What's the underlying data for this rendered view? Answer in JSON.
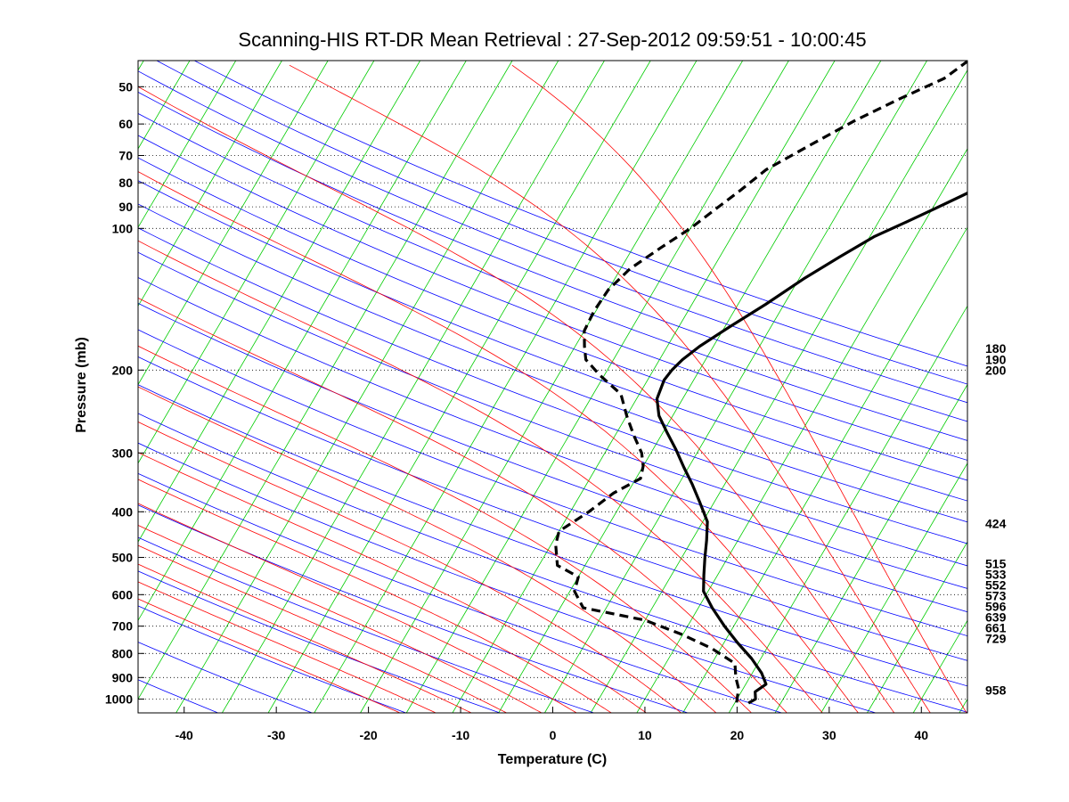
{
  "chart_data": {
    "type": "line",
    "title": "Scanning-HIS RT-DR Mean Retrieval : 27-Sep-2012 09:59:51 - 10:00:45",
    "xlabel": "Temperature (C)",
    "ylabel": "Pressure (mb)",
    "xlim": [
      -45,
      45
    ],
    "ylim": [
      1070,
      44
    ],
    "y_scale": "log",
    "x_ticks": [
      -40,
      -30,
      -20,
      -10,
      0,
      10,
      20,
      30,
      40
    ],
    "y_ticks": [
      50,
      60,
      70,
      80,
      90,
      100,
      200,
      300,
      400,
      500,
      600,
      700,
      800,
      900,
      1000
    ],
    "grid": "y dotted",
    "series": [
      {
        "name": "Temperature",
        "style": "solid black",
        "points": [
          [
            31.2,
            44
          ],
          [
            28.0,
            50
          ],
          [
            24.5,
            57
          ],
          [
            21.0,
            64
          ],
          [
            18.0,
            71
          ],
          [
            15.3,
            78
          ],
          [
            12.5,
            85
          ],
          [
            10.2,
            91
          ],
          [
            8.0,
            97
          ],
          [
            5.5,
            104
          ],
          [
            3.0,
            115
          ],
          [
            0.5,
            128
          ],
          [
            -2.0,
            145
          ],
          [
            -4.5,
            162
          ],
          [
            -6.5,
            178
          ],
          [
            -7.5,
            190
          ],
          [
            -8.0,
            200
          ],
          [
            -8.2,
            210
          ],
          [
            -7.8,
            230
          ],
          [
            -6.5,
            250
          ],
          [
            -4.5,
            272
          ],
          [
            -2.5,
            295
          ],
          [
            -0.5,
            322
          ],
          [
            1.5,
            350
          ],
          [
            3.5,
            383
          ],
          [
            5.5,
            420
          ],
          [
            6.6,
            460
          ],
          [
            7.5,
            500
          ],
          [
            8.5,
            545
          ],
          [
            9.5,
            590
          ],
          [
            11.5,
            640
          ],
          [
            14.0,
            700
          ],
          [
            16.5,
            760
          ],
          [
            19.0,
            820
          ],
          [
            21.0,
            880
          ],
          [
            22.2,
            930
          ],
          [
            21.5,
            965
          ],
          [
            22.0,
            1000
          ],
          [
            21.5,
            1020
          ]
        ]
      },
      {
        "name": "Dew Point",
        "style": "dashed black",
        "points": [
          [
            4.5,
            44
          ],
          [
            3.0,
            48
          ],
          [
            -0.5,
            53
          ],
          [
            -4.0,
            59
          ],
          [
            -7.5,
            67
          ],
          [
            -10.5,
            75
          ],
          [
            -12.0,
            83
          ],
          [
            -13.5,
            91
          ],
          [
            -15.0,
            100
          ],
          [
            -17.0,
            110
          ],
          [
            -19.0,
            122
          ],
          [
            -20.0,
            135
          ],
          [
            -20.2,
            150
          ],
          [
            -20.0,
            165
          ],
          [
            -19.0,
            178
          ],
          [
            -18.0,
            190
          ],
          [
            -15.5,
            205
          ],
          [
            -12.0,
            225
          ],
          [
            -10.0,
            250
          ],
          [
            -8.0,
            275
          ],
          [
            -6.0,
            300
          ],
          [
            -5.0,
            320
          ],
          [
            -4.5,
            340
          ],
          [
            -6.5,
            365
          ],
          [
            -8.0,
            400
          ],
          [
            -10.0,
            440
          ],
          [
            -9.5,
            470
          ],
          [
            -8.0,
            520
          ],
          [
            -5.0,
            550
          ],
          [
            -4.5,
            590
          ],
          [
            -2.5,
            640
          ],
          [
            5.0,
            680
          ],
          [
            10.0,
            730
          ],
          [
            14.0,
            780
          ],
          [
            17.5,
            840
          ],
          [
            18.5,
            900
          ],
          [
            19.5,
            950
          ],
          [
            20.0,
            1000
          ],
          [
            20.2,
            1020
          ]
        ]
      }
    ],
    "background_lines": [
      {
        "name": "isotherms (skewed)",
        "color": "#00cc00"
      },
      {
        "name": "dry adiabats",
        "color": "#0000ff"
      },
      {
        "name": "moist adiabats",
        "color": "#ff0000"
      }
    ],
    "right_labels": [
      {
        "p": 180,
        "text": "180"
      },
      {
        "p": 190,
        "text": "190"
      },
      {
        "p": 200,
        "text": "200"
      },
      {
        "p": 424,
        "text": "424"
      },
      {
        "p": 515,
        "text": "515"
      },
      {
        "p": 533,
        "text": "533"
      },
      {
        "p": 552,
        "text": "552"
      },
      {
        "p": 573,
        "text": "573"
      },
      {
        "p": 596,
        "text": "596"
      },
      {
        "p": 639,
        "text": "639"
      },
      {
        "p": 661,
        "text": "661"
      },
      {
        "p": 729,
        "text": "729"
      },
      {
        "p": 958,
        "text": "958"
      }
    ]
  }
}
